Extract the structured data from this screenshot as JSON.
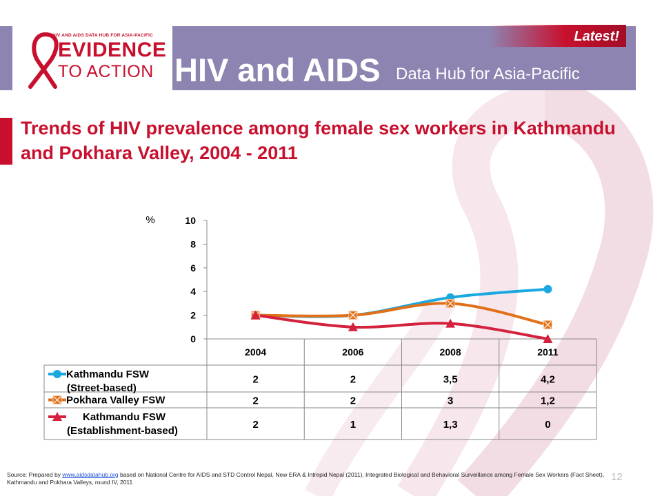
{
  "header": {
    "logo_tagline": "HIV AND AIDS DATA HUB FOR ASIA-PACIFIC",
    "logo_line1": "EVIDENCE",
    "logo_line2": "TO ACTION",
    "title": "HIV and AIDS",
    "subtitle": "Data Hub for Asia-Pacific",
    "badge": "Latest!"
  },
  "slide": {
    "title": "Trends of HIV prevalence among female sex workers in Kathmandu and Pokhara Valley, 2004 - 2011",
    "number": "12"
  },
  "chart_data": {
    "type": "line",
    "ylabel": "%",
    "ylim": [
      0,
      10
    ],
    "yticks": [
      "0",
      "2",
      "4",
      "6",
      "8",
      "10"
    ],
    "categories": [
      "2004",
      "2006",
      "2008",
      "2011"
    ],
    "series": [
      {
        "name": "Kathmandu FSW (Street-based)",
        "name_lines": [
          "Kathmandu FSW",
          "(Street-based)"
        ],
        "color": "#1aa8e0",
        "marker": "circle",
        "values": [
          2,
          2,
          3.5,
          4.2
        ],
        "labels": [
          "2",
          "2",
          "3,5",
          "4,2"
        ]
      },
      {
        "name": "Pokhara Valley FSW",
        "name_lines": [
          "Pokhara Valley FSW"
        ],
        "color": "#e0701a",
        "marker": "x-square",
        "values": [
          2,
          2,
          3,
          1.2
        ],
        "labels": [
          "2",
          "2",
          "3",
          "1,2"
        ]
      },
      {
        "name": "Kathmandu FSW (Establishment-based)",
        "name_lines": [
          "Kathmandu FSW",
          "(Establishment-based)"
        ],
        "color": "#d4213d",
        "marker": "triangle",
        "values": [
          2,
          1,
          1.3,
          0
        ],
        "labels": [
          "2",
          "1",
          "1,3",
          "0"
        ]
      }
    ],
    "grid": false,
    "legend": "data-table"
  },
  "source": {
    "prefix": "Source: Prepared by ",
    "link": "www.aidsdatahub.org",
    "text": " based on National Centre for AIDS and STD Control Nepal, New ERA & Intrepid Nepal (2011), Integrated Biological and Behavioral Surveillance among Female Sex Workers (Fact Sheet), Kathmandu and Pokhara Valleys, round IV, 2011"
  }
}
